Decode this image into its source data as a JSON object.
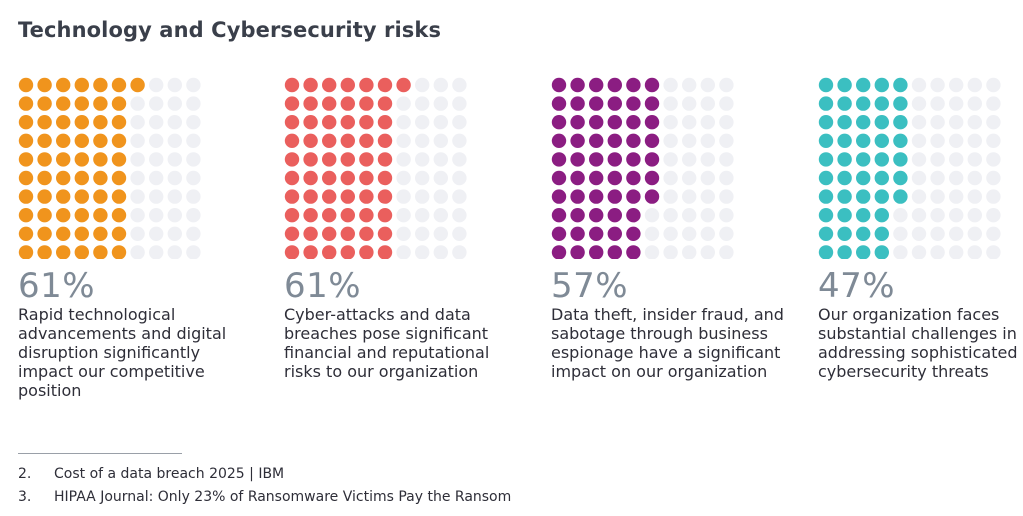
{
  "title": "Technology and Cybersecurity risks",
  "chart_data": {
    "type": "waffle",
    "grid": {
      "rows": 10,
      "cols": 10
    },
    "empty_color": "#eff0f4",
    "items": [
      {
        "value": 61,
        "label": "61%",
        "description": "Rapid technological advancements and digital disruption significantly impact our competitive position",
        "color": "#f0941d"
      },
      {
        "value": 61,
        "label": "61%",
        "description": "Cyber-attacks and data breaches pose significant financial and reputational risks to our organization",
        "color": "#ea5f5d"
      },
      {
        "value": 57,
        "label": "57%",
        "description": "Data theft, insider fraud, and sabotage through business espionage have a significant impact on our organization",
        "color": "#8b1d82"
      },
      {
        "value": 47,
        "label": "47%",
        "description": "Our organization faces substantial challenges in addressing sophisticated cybersecurity threats",
        "color": "#3bbfc1"
      }
    ]
  },
  "footnotes": [
    {
      "num": "2.",
      "text": "Cost of a data breach 2025 | IBM"
    },
    {
      "num": "3.",
      "text": "HIPAA Journal: Only 23% of Ransomware Victims Pay the Ransom"
    }
  ]
}
